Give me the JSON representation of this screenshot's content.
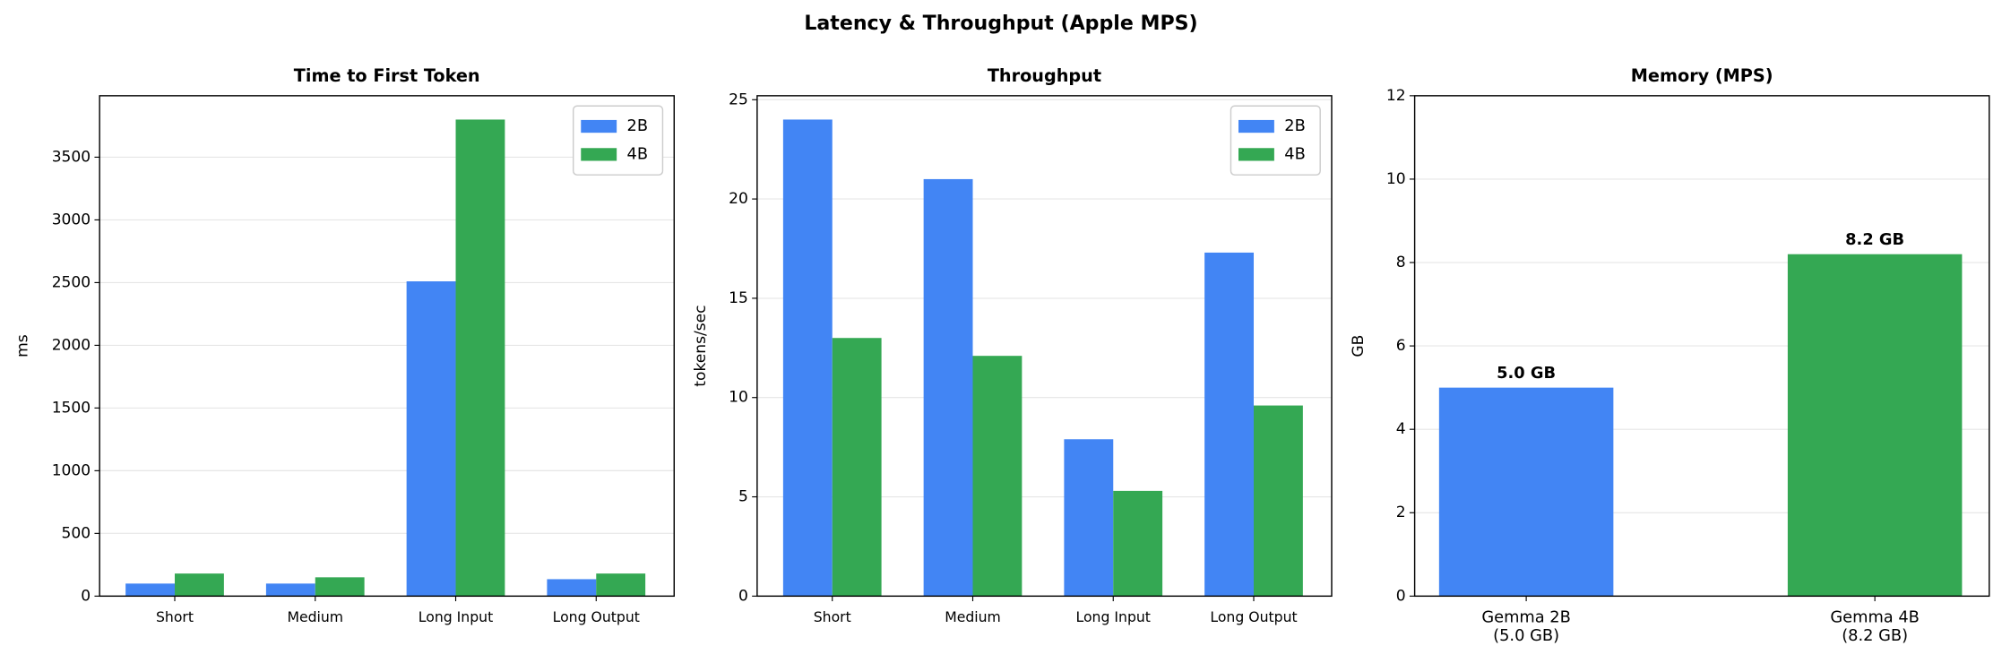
{
  "title": "Latency & Throughput (Apple MPS)",
  "chart_data": [
    {
      "type": "grouped-bar",
      "title": "Time to First Token",
      "ylabel": "ms",
      "categories": [
        "Short",
        "Medium",
        "Long Input",
        "Long Output"
      ],
      "series": [
        {
          "name": "2B",
          "color": "#4285f4",
          "values": [
            100,
            100,
            2510,
            135
          ]
        },
        {
          "name": "4B",
          "color": "#34a853",
          "values": [
            180,
            150,
            3800,
            180
          ]
        }
      ],
      "ylim": [
        0,
        3990
      ],
      "yticks": [
        0,
        500,
        1000,
        1500,
        2000,
        2500,
        3000,
        3500
      ],
      "grid": true,
      "legend": "upper-right"
    },
    {
      "type": "grouped-bar",
      "title": "Throughput",
      "ylabel": "tokens/sec",
      "categories": [
        "Short",
        "Medium",
        "Long Input",
        "Long Output"
      ],
      "series": [
        {
          "name": "2B",
          "color": "#4285f4",
          "values": [
            24.0,
            21.0,
            7.9,
            17.3
          ]
        },
        {
          "name": "4B",
          "color": "#34a853",
          "values": [
            13.0,
            12.1,
            5.3,
            9.6
          ]
        }
      ],
      "ylim": [
        0,
        25.2
      ],
      "yticks": [
        0,
        5,
        10,
        15,
        20,
        25
      ],
      "grid": true,
      "legend": "upper-right"
    },
    {
      "type": "bar",
      "title": "Memory (MPS)",
      "ylabel": "GB",
      "categories": [
        "Gemma 2B\n(5.0 GB)",
        "Gemma 4B\n(8.2 GB)"
      ],
      "values": [
        5.0,
        8.2
      ],
      "value_labels": [
        "5.0 GB",
        "8.2 GB"
      ],
      "colors": [
        "#4285f4",
        "#34a853"
      ],
      "ylim": [
        0,
        12
      ],
      "yticks": [
        0,
        2,
        4,
        6,
        8,
        10,
        12
      ],
      "grid": true
    }
  ]
}
